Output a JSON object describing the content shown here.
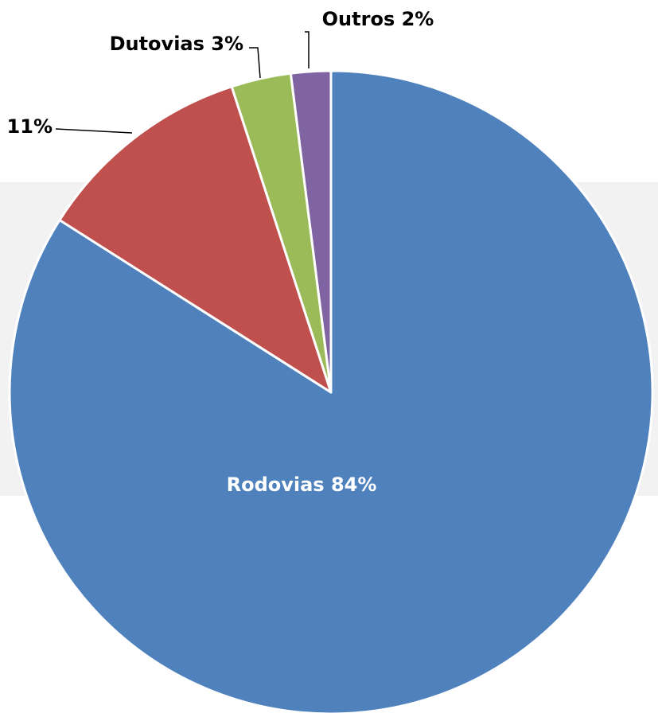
{
  "chart_data": {
    "type": "pie",
    "title": "",
    "slices": [
      {
        "label": "Rodovias",
        "value": 84,
        "display": "Rodovias 84%",
        "color": "#4f81bd",
        "label_position": "inside"
      },
      {
        "label": "",
        "value": 11,
        "display": "11%",
        "color": "#c0504d",
        "label_position": "outside-left"
      },
      {
        "label": "Dutovias",
        "value": 3,
        "display": "Dutovias 3%",
        "color": "#9bbb59",
        "label_position": "outside-top"
      },
      {
        "label": "Outros",
        "value": 2,
        "display": "Outros 2%",
        "color": "#8064a2",
        "label_position": "outside-top"
      }
    ],
    "start": "12 o'clock, clockwise",
    "legend": "none"
  }
}
